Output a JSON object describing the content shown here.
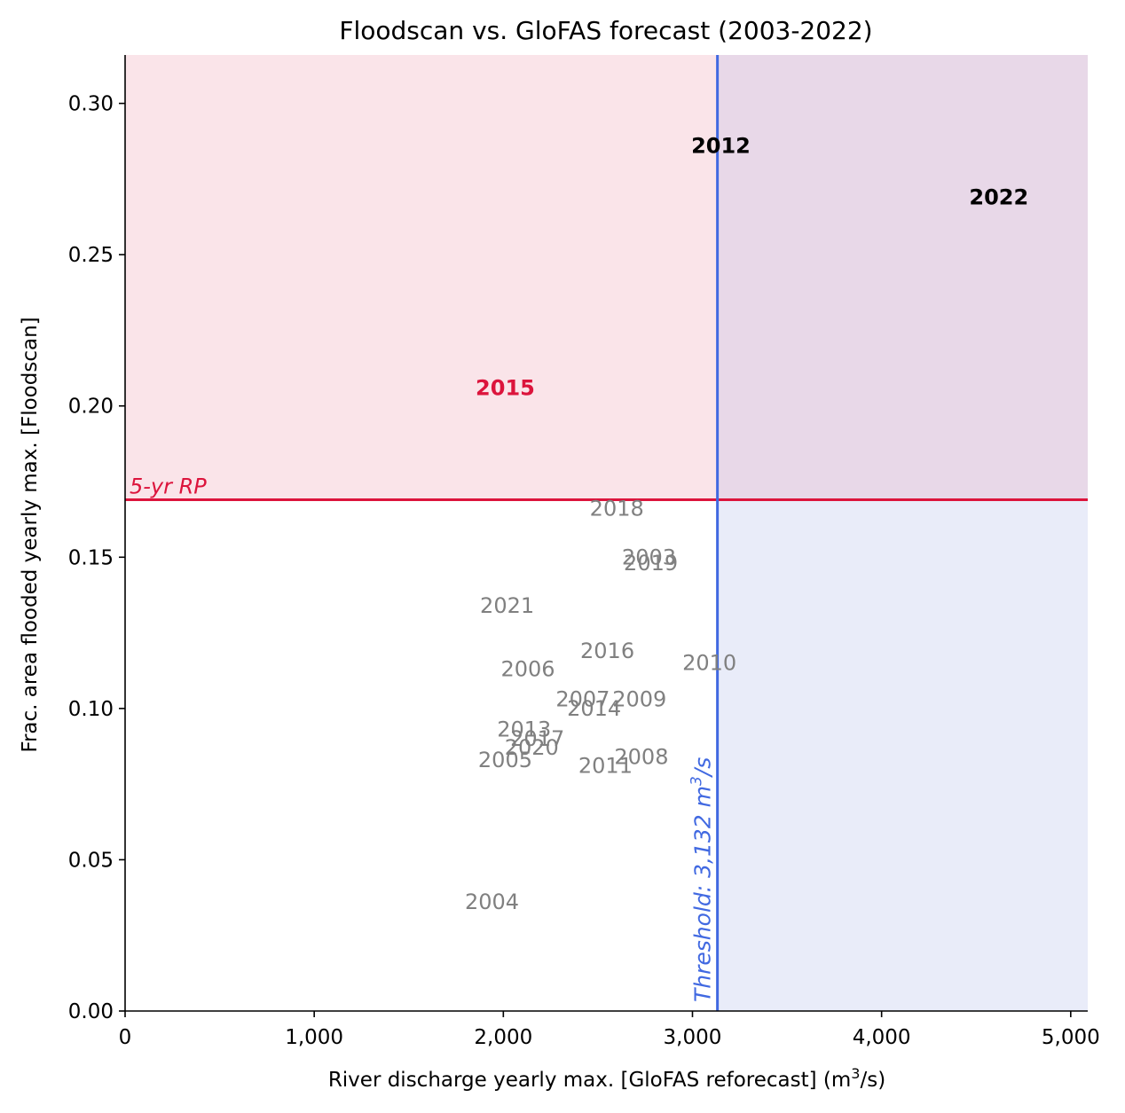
{
  "chart_data": {
    "type": "scatter",
    "title": "Floodscan vs. GloFAS forecast (2003-2022)",
    "xlabel": "River discharge yearly max. [GloFAS reforecast] (m",
    "xlabel_sup": "3",
    "xlabel_tail": "/s)",
    "ylabel": "Frac. area flooded yearly max. [Floodscan]",
    "xlim": [
      0,
      5090
    ],
    "ylim": [
      0,
      0.316
    ],
    "x_ticks": [
      0,
      1000,
      2000,
      3000,
      4000,
      5000
    ],
    "x_tick_labels": [
      "0",
      "1,000",
      "2,000",
      "3,000",
      "4,000",
      "5,000"
    ],
    "y_ticks": [
      0,
      0.05,
      0.1,
      0.15,
      0.2,
      0.25,
      0.3
    ],
    "y_tick_labels": [
      "0.00",
      "0.05",
      "0.10",
      "0.15",
      "0.20",
      "0.25",
      "0.30"
    ],
    "grid": false,
    "thresholds": {
      "x": 3132,
      "x_label": "Threshold: 3,132 m",
      "x_label_sup": "3",
      "x_label_tail": "/s",
      "x_color": "#4169e1",
      "y": 0.169,
      "y_label": "5-yr RP",
      "y_color": "#dc143c"
    },
    "regions": {
      "above_threshold_y_color": "#fae4e9",
      "above_both_color": "#e8d8e8",
      "right_of_threshold_x_color": "#e9ecf9"
    },
    "points": [
      {
        "label": "2003",
        "x": 2770,
        "y": 0.15,
        "style": "normal"
      },
      {
        "label": "2004",
        "x": 1940,
        "y": 0.036,
        "style": "normal"
      },
      {
        "label": "2005",
        "x": 2010,
        "y": 0.083,
        "style": "normal"
      },
      {
        "label": "2006",
        "x": 2130,
        "y": 0.113,
        "style": "normal"
      },
      {
        "label": "2007",
        "x": 2420,
        "y": 0.103,
        "style": "normal"
      },
      {
        "label": "2008",
        "x": 2730,
        "y": 0.084,
        "style": "normal"
      },
      {
        "label": "2009",
        "x": 2720,
        "y": 0.103,
        "style": "normal"
      },
      {
        "label": "2010",
        "x": 3090,
        "y": 0.115,
        "style": "normal"
      },
      {
        "label": "2011",
        "x": 2540,
        "y": 0.081,
        "style": "normal"
      },
      {
        "label": "2012",
        "x": 3150,
        "y": 0.286,
        "style": "bold-black"
      },
      {
        "label": "2013",
        "x": 2110,
        "y": 0.093,
        "style": "normal"
      },
      {
        "label": "2014",
        "x": 2480,
        "y": 0.1,
        "style": "normal"
      },
      {
        "label": "2015",
        "x": 2010,
        "y": 0.206,
        "style": "bold-red"
      },
      {
        "label": "2016",
        "x": 2550,
        "y": 0.119,
        "style": "normal"
      },
      {
        "label": "2017",
        "x": 2180,
        "y": 0.09,
        "style": "normal"
      },
      {
        "label": "2018",
        "x": 2600,
        "y": 0.166,
        "style": "normal"
      },
      {
        "label": "2019",
        "x": 2780,
        "y": 0.148,
        "style": "normal"
      },
      {
        "label": "2020",
        "x": 2150,
        "y": 0.087,
        "style": "normal"
      },
      {
        "label": "2021",
        "x": 2020,
        "y": 0.134,
        "style": "normal"
      },
      {
        "label": "2022",
        "x": 4620,
        "y": 0.269,
        "style": "bold-black"
      }
    ]
  }
}
